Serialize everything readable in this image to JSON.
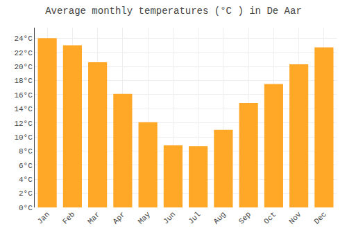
{
  "chart_data": {
    "type": "bar",
    "title": "Average monthly temperatures (°C ) in De Aar",
    "categories": [
      "Jan",
      "Feb",
      "Mar",
      "Apr",
      "May",
      "Jun",
      "Jul",
      "Aug",
      "Sep",
      "Oct",
      "Nov",
      "Dec"
    ],
    "values": [
      24.0,
      23.0,
      20.6,
      16.1,
      12.1,
      8.8,
      8.7,
      11.0,
      14.8,
      17.5,
      20.3,
      22.7
    ],
    "color": "#FFA828",
    "ylim": [
      0,
      25.5
    ],
    "yticks": [
      {
        "value": 0,
        "label": "0°C"
      },
      {
        "value": 2,
        "label": "2°C"
      },
      {
        "value": 4,
        "label": "4°C"
      },
      {
        "value": 6,
        "label": "6°C"
      },
      {
        "value": 8,
        "label": "8°C"
      },
      {
        "value": 10,
        "label": "10°C"
      },
      {
        "value": 12,
        "label": "12°C"
      },
      {
        "value": 14,
        "label": "14°C"
      },
      {
        "value": 16,
        "label": "16°C"
      },
      {
        "value": 18,
        "label": "18°C"
      },
      {
        "value": 20,
        "label": "20°C"
      },
      {
        "value": 22,
        "label": "22°C"
      },
      {
        "value": 24,
        "label": "24°C"
      }
    ],
    "grid": true
  }
}
